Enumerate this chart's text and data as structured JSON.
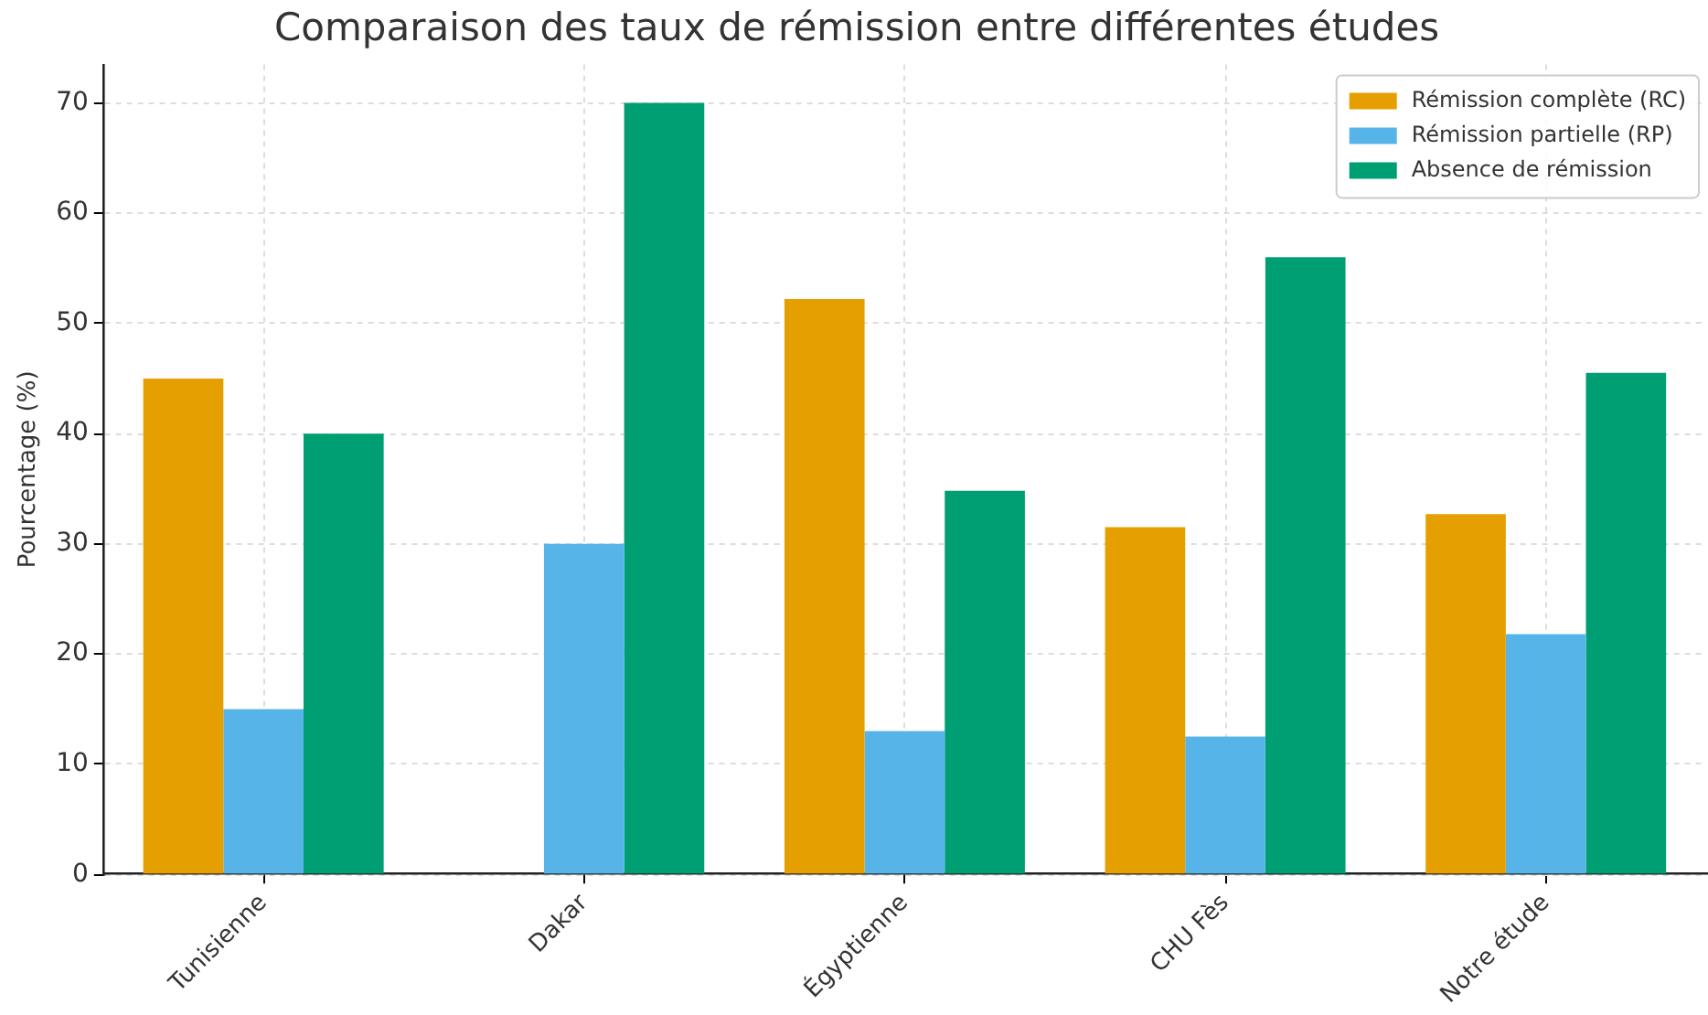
{
  "chart_data": {
    "type": "bar",
    "title": "Comparaison des taux de rémission entre différentes études",
    "ylabel": "Pourcentage (%)",
    "categories": [
      "Tunisienne",
      "Dakar",
      "Égyptienne",
      "CHU Fès",
      "Notre étude"
    ],
    "series": [
      {
        "name": "Rémission complète (RC)",
        "color": "#e69f00",
        "values": [
          45,
          null,
          52.2,
          31.5,
          32.7
        ]
      },
      {
        "name": "Rémission partielle (RP)",
        "color": "#56b4e9",
        "values": [
          15,
          30,
          13,
          12.5,
          21.8
        ]
      },
      {
        "name": "Absence de rémission",
        "color": "#009e73",
        "values": [
          40,
          70,
          34.8,
          56,
          45.5
        ]
      }
    ],
    "ylim": [
      0,
      73.5
    ],
    "yticks": [
      0,
      10,
      20,
      30,
      40,
      50,
      60,
      70
    ],
    "grid": true,
    "legend": "top right"
  }
}
